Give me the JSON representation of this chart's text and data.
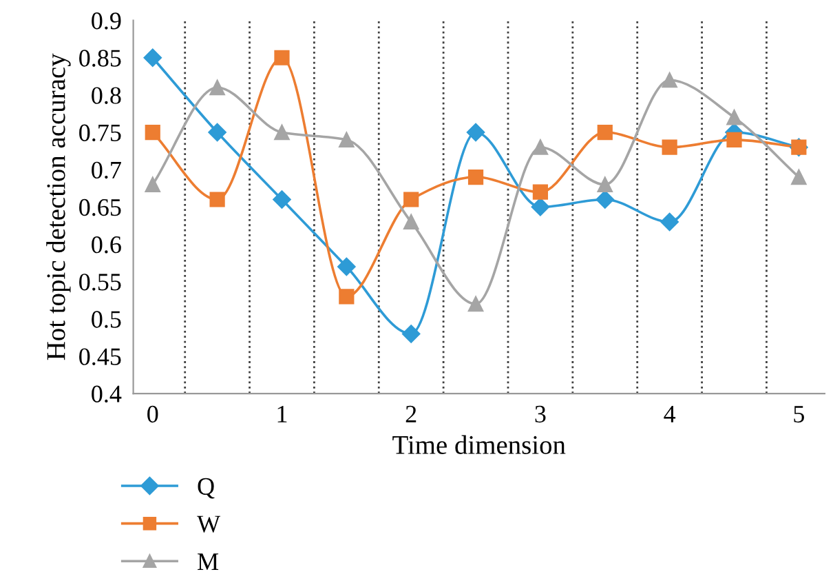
{
  "chart_data": {
    "type": "line",
    "xlabel": "Time dimension",
    "ylabel": "Hot topic detection accuracy",
    "x": [
      0,
      0.5,
      1,
      1.5,
      2,
      2.5,
      3,
      3.5,
      4,
      4.5,
      5
    ],
    "series": [
      {
        "name": "Q",
        "color": "#2e9bd6",
        "marker": "diamond",
        "values": [
          0.85,
          0.75,
          0.66,
          0.57,
          0.48,
          0.75,
          0.65,
          0.66,
          0.63,
          0.75,
          0.73
        ]
      },
      {
        "name": "W",
        "color": "#ed7d31",
        "marker": "square",
        "values": [
          0.75,
          0.66,
          0.85,
          0.53,
          0.66,
          0.69,
          0.67,
          0.75,
          0.73,
          0.74,
          0.73
        ]
      },
      {
        "name": "M",
        "color": "#a5a5a5",
        "marker": "triangle",
        "values": [
          0.68,
          0.81,
          0.75,
          0.74,
          0.63,
          0.52,
          0.73,
          0.68,
          0.82,
          0.77,
          0.69
        ]
      }
    ],
    "xlim": [
      -0.15,
      5.2
    ],
    "xticks": [
      0,
      1,
      2,
      3,
      4,
      5
    ],
    "ylim": [
      0.4,
      0.9
    ],
    "yticks": [
      0.4,
      0.45,
      0.5,
      0.55,
      0.6,
      0.65,
      0.7,
      0.75,
      0.8,
      0.85,
      0.9
    ],
    "ref_lines": [
      {
        "axis": "x",
        "value": 0.25,
        "color": "#404040",
        "line_style": "dotted"
      },
      {
        "axis": "x",
        "value": 0.75,
        "color": "#404040",
        "line_style": "dotted"
      },
      {
        "axis": "x",
        "value": 1.25,
        "color": "#404040",
        "line_style": "dotted"
      },
      {
        "axis": "x",
        "value": 1.75,
        "color": "#404040",
        "line_style": "dotted"
      },
      {
        "axis": "x",
        "value": 2.25,
        "color": "#404040",
        "line_style": "dotted"
      },
      {
        "axis": "x",
        "value": 2.75,
        "color": "#404040",
        "line_style": "dotted"
      },
      {
        "axis": "x",
        "value": 3.25,
        "color": "#404040",
        "line_style": "dotted"
      },
      {
        "axis": "x",
        "value": 3.75,
        "color": "#404040",
        "line_style": "dotted"
      },
      {
        "axis": "x",
        "value": 4.25,
        "color": "#404040",
        "line_style": "dotted"
      },
      {
        "axis": "x",
        "value": 4.75,
        "color": "#404040",
        "line_style": "dotted"
      }
    ],
    "grid": false,
    "legend": "bottom left",
    "line_style": "solid"
  }
}
